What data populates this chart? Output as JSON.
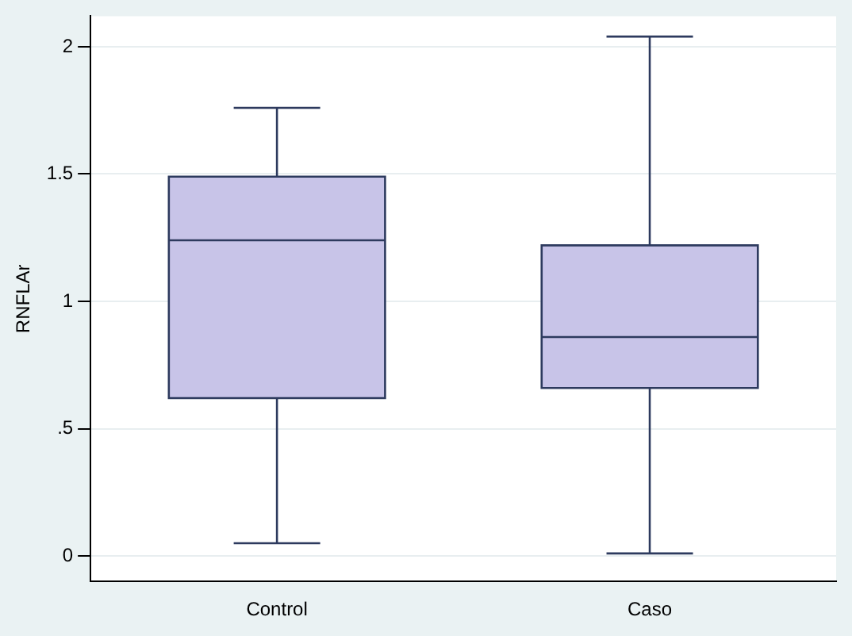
{
  "chart_data": {
    "type": "box",
    "ylabel": "RNFLAr",
    "categories": [
      "Control",
      "Caso"
    ],
    "color": "#c8c4e8",
    "boxes": [
      {
        "low": 0.05,
        "q1": 0.62,
        "median": 1.24,
        "q3": 1.49,
        "high": 1.76
      },
      {
        "low": 0.01,
        "q1": 0.66,
        "median": 0.86,
        "q3": 1.22,
        "high": 2.04
      }
    ],
    "ylim": [
      -0.1,
      2.12
    ],
    "yticks": [
      0,
      {
        "value": 0.5,
        "label": ".5"
      },
      1,
      1.5,
      2
    ],
    "grid": "y",
    "legend": false
  }
}
